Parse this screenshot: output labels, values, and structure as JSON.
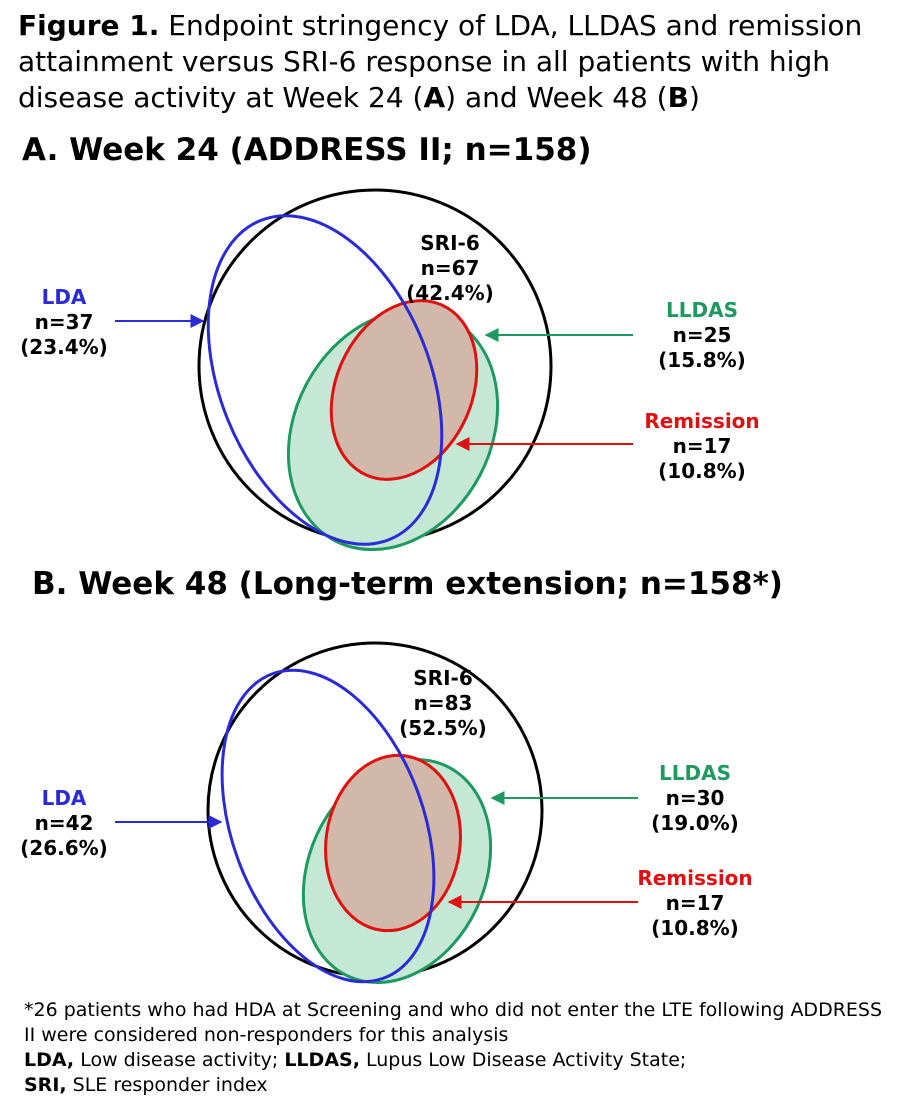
{
  "figure": {
    "label": "Figure 1.",
    "caption_part1": " Endpoint stringency of LDA, LLDAS and remission attainment versus SRI-6 response in all patients with high disease activity at Week 24 (",
    "panel_a_ref": "A",
    "caption_part2": ") and Week 48 (",
    "panel_b_ref": "B",
    "caption_part3": ")"
  },
  "panel_a": {
    "heading": "A. Week 24 (ADDRESS II; n=158)",
    "sri6": {
      "name": "SRI-6",
      "n": "n=67",
      "pct": "(42.4%)"
    },
    "lda": {
      "name": "LDA",
      "n": "n=37",
      "pct": "(23.4%)"
    },
    "lldas": {
      "name": "LLDAS",
      "n": "n=25",
      "pct": "(15.8%)"
    },
    "remission": {
      "name": "Remission",
      "n": "n=17",
      "pct": "(10.8%)"
    }
  },
  "panel_b": {
    "heading": "B. Week 48 (Long-term extension; n=158*)",
    "sri6": {
      "name": "SRI-6",
      "n": "n=83",
      "pct": "(52.5%)"
    },
    "lda": {
      "name": "LDA",
      "n": "n=42",
      "pct": "(26.6%)"
    },
    "lldas": {
      "name": "LLDAS",
      "n": "n=30",
      "pct": "(19.0%)"
    },
    "remission": {
      "name": "Remission",
      "n": "n=17",
      "pct": "(10.8%)"
    }
  },
  "footnote": {
    "line1": "*26 patients who had HDA at Screening and who did not enter the LTE following ADDRESS II were considered non-responders for this analysis",
    "abbr_lda": "LDA,",
    "def_lda": " Low disease activity; ",
    "abbr_lldas": "LLDAS,",
    "def_lldas": " Lupus Low Disease Activity State;",
    "abbr_sri": "SRI,",
    "def_sri": " SLE responder index"
  },
  "colors": {
    "sri6": "#000000",
    "lda": "#2b2bd6",
    "lldas": "#1e9960",
    "lldas_fill": "#c5e8d6",
    "remission": "#e01010",
    "remission_fill": "#d2b8a8"
  }
}
